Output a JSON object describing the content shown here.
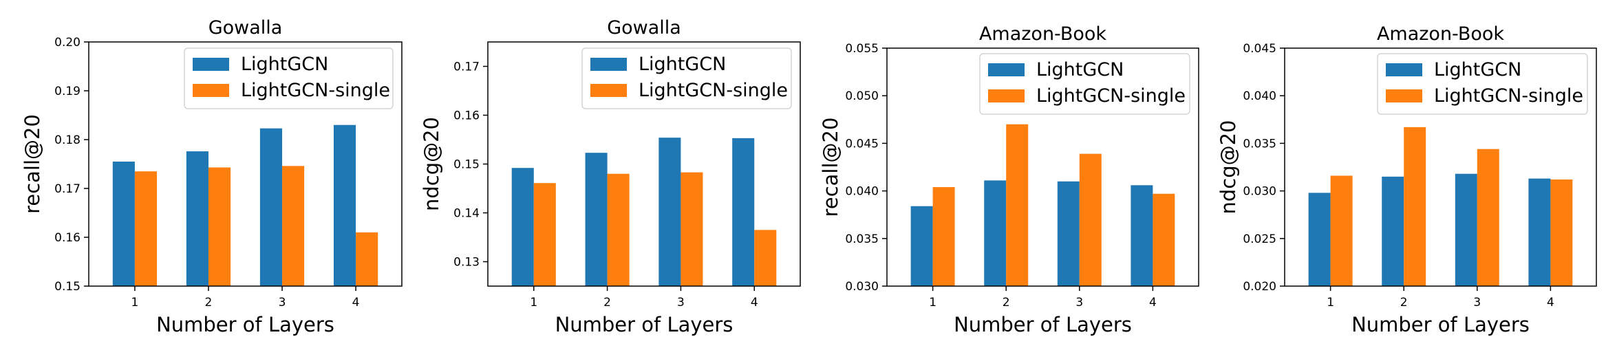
{
  "colors": {
    "LightGCN": "#1f77b4",
    "LightGCN-single": "#ff7f0e",
    "axis": "#000000",
    "legend_border": "#cccccc"
  },
  "chart_data": [
    {
      "type": "bar",
      "title": "Gowalla",
      "xlabel": "Number of Layers",
      "ylabel": "recall@20",
      "categories": [
        "1",
        "2",
        "3",
        "4"
      ],
      "ylim": [
        0.15,
        0.2
      ],
      "yticks": [
        0.15,
        0.16,
        0.17,
        0.18,
        0.19,
        0.2
      ],
      "ytick_labels": [
        "0.15",
        "0.16",
        "0.17",
        "0.18",
        "0.19",
        "0.20"
      ],
      "legend": "top-right",
      "grid": false,
      "series": [
        {
          "name": "LightGCN",
          "values": [
            0.1755,
            0.1776,
            0.1823,
            0.183
          ]
        },
        {
          "name": "LightGCN-single",
          "values": [
            0.1735,
            0.1743,
            0.1746,
            0.161
          ]
        }
      ]
    },
    {
      "type": "bar",
      "title": "Gowalla",
      "xlabel": "Number of Layers",
      "ylabel": "ndcg@20",
      "categories": [
        "1",
        "2",
        "3",
        "4"
      ],
      "ylim": [
        0.125,
        0.175
      ],
      "yticks": [
        0.13,
        0.14,
        0.15,
        0.16,
        0.17
      ],
      "ytick_labels": [
        "0.13",
        "0.14",
        "0.15",
        "0.16",
        "0.17"
      ],
      "legend": "top-right",
      "grid": false,
      "series": [
        {
          "name": "LightGCN",
          "values": [
            0.1492,
            0.1523,
            0.1554,
            0.1553
          ]
        },
        {
          "name": "LightGCN-single",
          "values": [
            0.1461,
            0.148,
            0.1483,
            0.1365
          ]
        }
      ]
    },
    {
      "type": "bar",
      "title": "Amazon-Book",
      "xlabel": "Number of Layers",
      "ylabel": "recall@20",
      "categories": [
        "1",
        "2",
        "3",
        "4"
      ],
      "ylim": [
        0.03,
        0.055
      ],
      "yticks": [
        0.03,
        0.035,
        0.04,
        0.045,
        0.05,
        0.055
      ],
      "ytick_labels": [
        "0.030",
        "0.035",
        "0.040",
        "0.045",
        "0.050",
        "0.055"
      ],
      "legend": "top-right",
      "grid": false,
      "series": [
        {
          "name": "LightGCN",
          "values": [
            0.0384,
            0.0411,
            0.041,
            0.0406
          ]
        },
        {
          "name": "LightGCN-single",
          "values": [
            0.0404,
            0.047,
            0.0439,
            0.0397
          ]
        }
      ]
    },
    {
      "type": "bar",
      "title": "Amazon-Book",
      "xlabel": "Number of Layers",
      "ylabel": "ndcg@20",
      "categories": [
        "1",
        "2",
        "3",
        "4"
      ],
      "ylim": [
        0.02,
        0.045
      ],
      "yticks": [
        0.02,
        0.025,
        0.03,
        0.035,
        0.04,
        0.045
      ],
      "ytick_labels": [
        "0.020",
        "0.025",
        "0.030",
        "0.035",
        "0.040",
        "0.045"
      ],
      "legend": "top-right",
      "grid": false,
      "series": [
        {
          "name": "LightGCN",
          "values": [
            0.0298,
            0.0315,
            0.0318,
            0.0313
          ]
        },
        {
          "name": "LightGCN-single",
          "values": [
            0.0316,
            0.0367,
            0.0344,
            0.0312
          ]
        }
      ]
    }
  ]
}
